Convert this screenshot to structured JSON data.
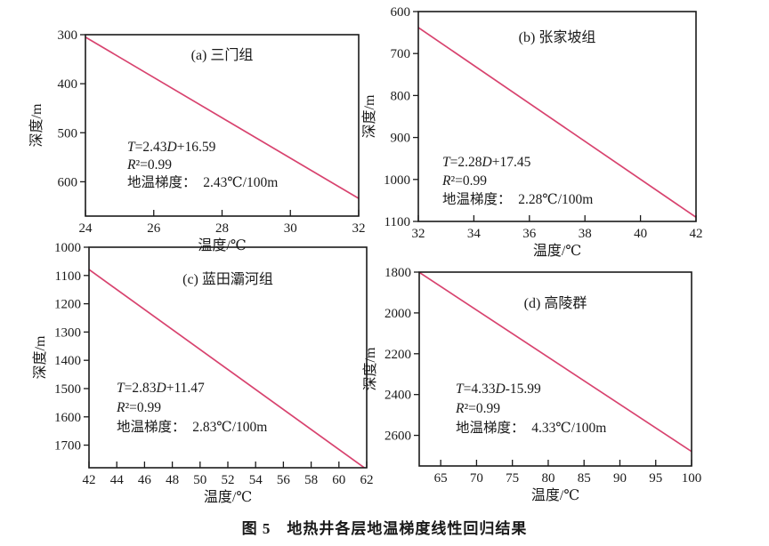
{
  "figure": {
    "caption": "图 5　地热井各层地温梯度线性回归结果"
  },
  "colors": {
    "regression_line": "#d8436f",
    "axis": "#1a1a1a"
  },
  "chart_data": [
    {
      "id": "a",
      "type": "line",
      "title": "(a) 三门组",
      "xlabel": "温度/℃",
      "ylabel": "深度/m",
      "xlim": [
        24,
        32
      ],
      "ylim_top": 300,
      "ylim_bottom": 670,
      "y_axis_inverted": true,
      "grid": false,
      "legend": "none",
      "xticks": [
        24,
        26,
        28,
        30,
        32
      ],
      "yticks": [
        300,
        400,
        500,
        600
      ],
      "annotation": {
        "equation": "T=2.43D+16.59",
        "r2": "R²=0.99",
        "gradient": "地温梯度：  2.43℃/100m"
      },
      "series": [
        {
          "name": "回归线",
          "color": "#d8436f",
          "x": [
            24,
            32
          ],
          "y": [
            305,
            634
          ]
        }
      ]
    },
    {
      "id": "b",
      "type": "line",
      "title": "(b) 张家坡组",
      "xlabel": "温度/℃",
      "ylabel": "深度/m",
      "xlim": [
        32,
        42
      ],
      "ylim_top": 600,
      "ylim_bottom": 1100,
      "y_axis_inverted": true,
      "grid": false,
      "legend": "none",
      "xticks": [
        32,
        34,
        36,
        38,
        40,
        42
      ],
      "yticks": [
        600,
        700,
        800,
        900,
        1000,
        1100
      ],
      "annotation": {
        "equation": "T=2.28D+17.45",
        "r2": "R²=0.99",
        "gradient": "地温梯度：  2.28℃/100m"
      },
      "series": [
        {
          "name": "回归线",
          "color": "#d8436f",
          "x": [
            32,
            42
          ],
          "y": [
            638,
            1090
          ]
        }
      ]
    },
    {
      "id": "c",
      "type": "line",
      "title": "(c) 蓝田灞河组",
      "xlabel": "温度/℃",
      "ylabel": "深度/m",
      "xlim": [
        42,
        62
      ],
      "ylim_top": 1000,
      "ylim_bottom": 1780,
      "y_axis_inverted": true,
      "grid": false,
      "legend": "none",
      "xticks": [
        42,
        44,
        46,
        48,
        50,
        52,
        54,
        56,
        58,
        60,
        62
      ],
      "yticks": [
        1000,
        1100,
        1200,
        1300,
        1400,
        1500,
        1600,
        1700
      ],
      "annotation": {
        "equation": "T=2.83D+11.47",
        "r2": "R²=0.99",
        "gradient": "地温梯度：  2.83℃/100m"
      },
      "series": [
        {
          "name": "回归线",
          "color": "#d8436f",
          "x": [
            42,
            62
          ],
          "y": [
            1079,
            1786
          ]
        }
      ]
    },
    {
      "id": "d",
      "type": "line",
      "title": "(d) 高陵群",
      "xlabel": "温度/℃",
      "ylabel": "深度/m",
      "xlim": [
        62,
        100
      ],
      "ylim_top": 1800,
      "ylim_bottom": 2750,
      "y_axis_inverted": true,
      "grid": false,
      "legend": "none",
      "xticks": [
        65,
        70,
        75,
        80,
        85,
        90,
        95,
        100
      ],
      "yticks": [
        1800,
        2000,
        2200,
        2400,
        2600
      ],
      "annotation": {
        "equation": "T=4.33D-15.99",
        "r2": "R²=0.99",
        "gradient": "地温梯度：  4.33℃/100m"
      },
      "series": [
        {
          "name": "回归线",
          "color": "#d8436f",
          "x": [
            62,
            100
          ],
          "y": [
            1801,
            2679
          ]
        }
      ]
    }
  ]
}
